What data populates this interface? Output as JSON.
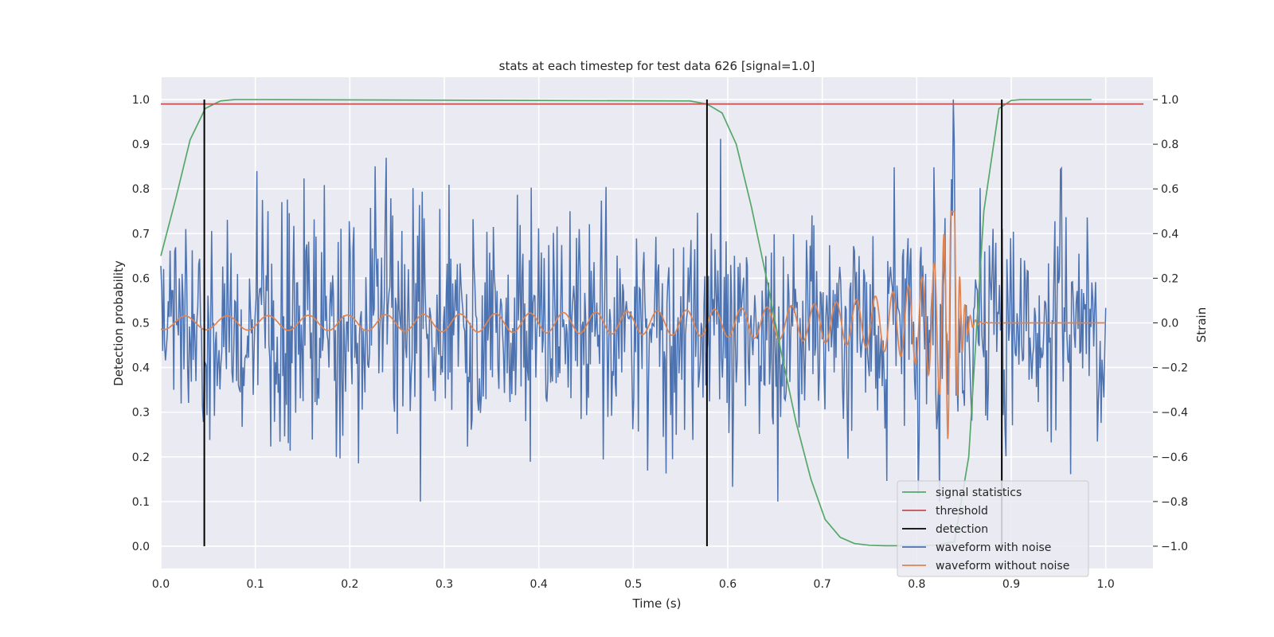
{
  "chart_data": {
    "type": "line",
    "title": "stats at each timestep for test data 626 [signal=1.0]",
    "xlabel": "Time (s)",
    "ylabel": "Detection probability",
    "ylabel_right": "Strain",
    "xlim": [
      0.0,
      1.05
    ],
    "ylim": [
      -0.05,
      1.05
    ],
    "ylim_right": [
      -1.1,
      1.1
    ],
    "xticks": [
      "0.0",
      "0.1",
      "0.2",
      "0.3",
      "0.4",
      "0.5",
      "0.6",
      "0.7",
      "0.8",
      "0.9",
      "1.0"
    ],
    "yticks": [
      "0.0",
      "0.1",
      "0.2",
      "0.3",
      "0.4",
      "0.5",
      "0.6",
      "0.7",
      "0.8",
      "0.9",
      "1.0"
    ],
    "yticks_right": [
      "−1.0",
      "−0.8",
      "−0.6",
      "−0.4",
      "−0.2",
      "0.0",
      "0.2",
      "0.4",
      "0.6",
      "0.8",
      "1.0"
    ],
    "grid": true,
    "legend_position": "lower-right",
    "series": [
      {
        "name": "signal statistics",
        "axis": "left",
        "color": "#55a868",
        "x": [
          0.0,
          0.016,
          0.031,
          0.047,
          0.063,
          0.078,
          0.094,
          0.56,
          0.578,
          0.594,
          0.609,
          0.625,
          0.641,
          0.656,
          0.672,
          0.688,
          0.703,
          0.719,
          0.734,
          0.75,
          0.766,
          0.78,
          0.8,
          0.82,
          0.84,
          0.855,
          0.871,
          0.887,
          0.9,
          0.91,
          0.92,
          0.985
        ],
        "y": [
          0.65,
          0.78,
          0.91,
          0.98,
          0.997,
          1.0,
          1.0,
          0.997,
          0.99,
          0.97,
          0.9,
          0.76,
          0.6,
          0.44,
          0.28,
          0.15,
          0.06,
          0.02,
          0.006,
          0.002,
          0.001,
          0.001,
          0.001,
          0.002,
          0.01,
          0.2,
          0.75,
          0.98,
          0.998,
          1.0,
          1.0,
          1.0
        ]
      },
      {
        "name": "threshold",
        "axis": "left",
        "color": "#c44e52",
        "x": [
          0.0,
          1.04
        ],
        "y": [
          0.99,
          0.99
        ]
      },
      {
        "name": "detection",
        "axis": "left",
        "color": "#000000",
        "segments": [
          {
            "x": 0.046,
            "y": [
              0.0,
              1.0
            ]
          },
          {
            "x": 0.578,
            "y": [
              0.0,
              1.0
            ]
          },
          {
            "x": 0.89,
            "y": [
              0.0,
              1.0
            ]
          }
        ]
      },
      {
        "name": "waveform with noise",
        "axis": "right",
        "color": "#4c72b0",
        "t_range": [
          0.0,
          1.0
        ],
        "points": 1024,
        "sigma": 0.25,
        "y_min": -0.8,
        "y_max": 1.0
      },
      {
        "name": "waveform without noise",
        "axis": "right",
        "color": "#dd8452",
        "t_range": [
          0.0,
          1.0
        ],
        "merger_time": 0.84,
        "peak_strain": 0.52
      }
    ]
  }
}
